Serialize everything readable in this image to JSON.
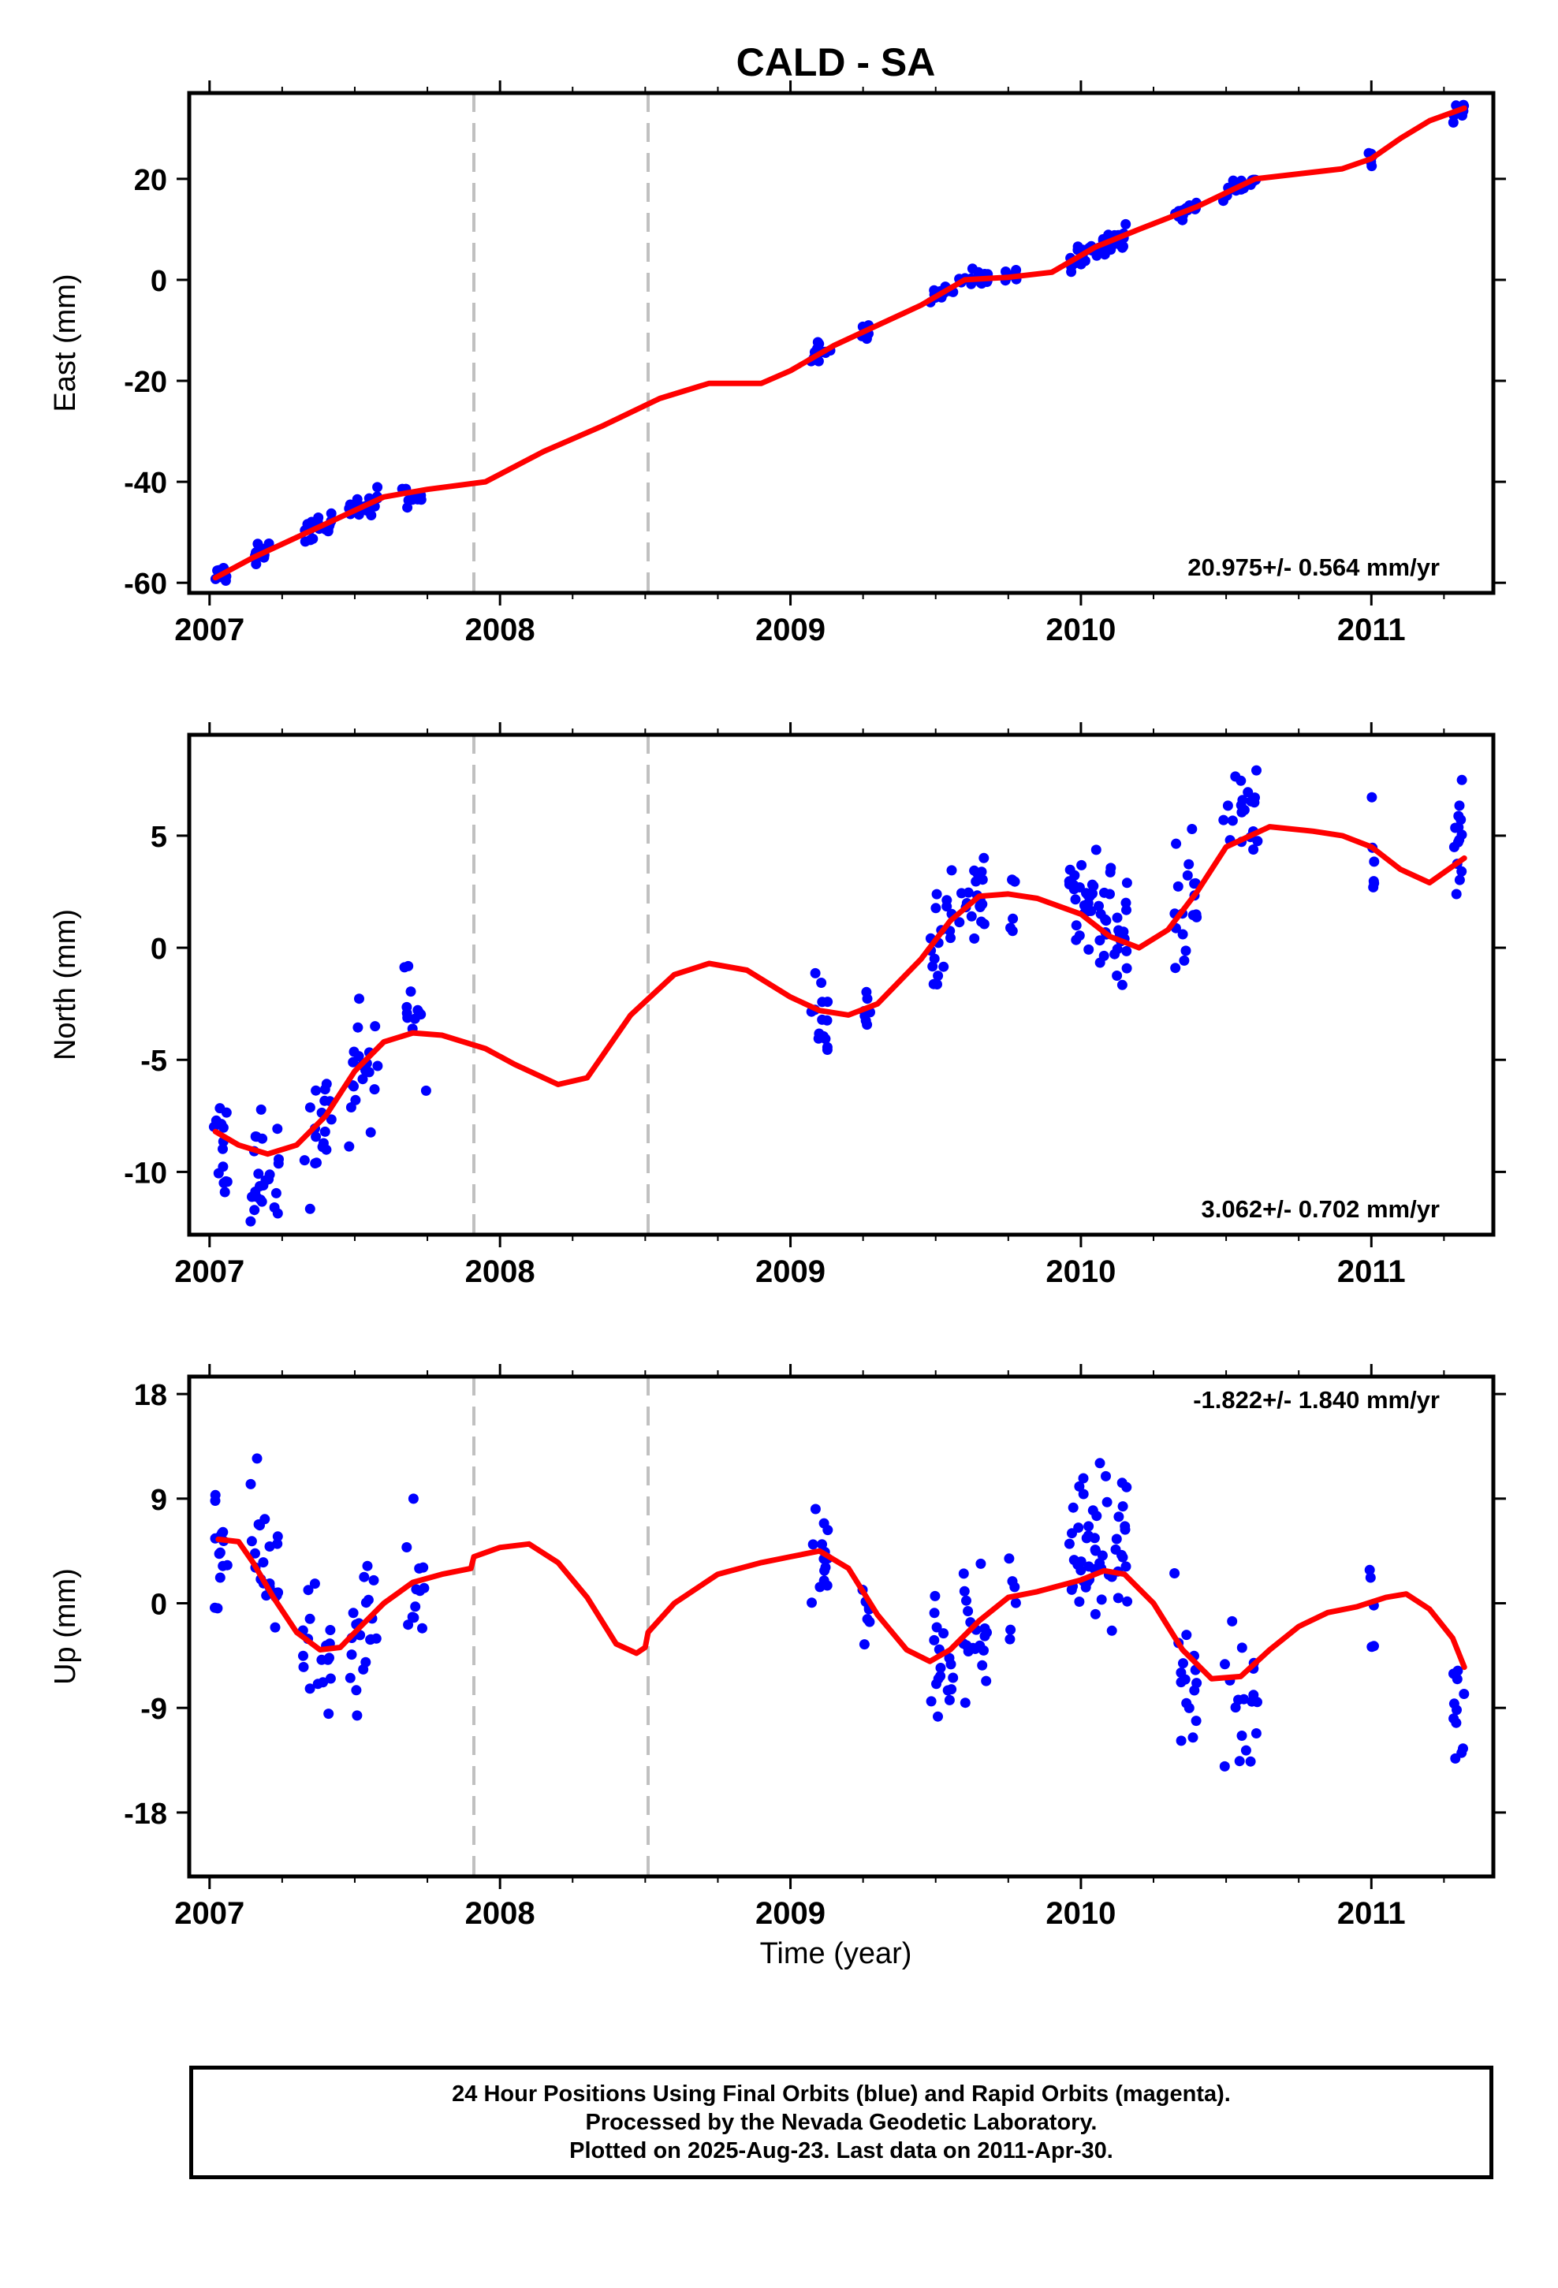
{
  "title": "CALD - SA",
  "x_axis_label": "Time (year)",
  "footer": {
    "lines": [
      "24 Hour Positions Using Final Orbits (blue) and Rapid Orbits (magenta).",
      "Processed by the Nevada Geodetic Laboratory.",
      "Plotted on 2025-Aug-23. Last data on 2011-Apr-30."
    ]
  },
  "colors": {
    "points": "#0000ff",
    "fit": "#ff0000",
    "offsets": "#c0c0c0",
    "frame": "#000000"
  },
  "chart_data": [
    {
      "type": "scatter",
      "component": "East",
      "ylabel": "East (mm)",
      "rate_label": "20.975+/- 0.564 mm/yr",
      "rate_position": "bottom-right",
      "xlim": [
        2006.93,
        2011.42
      ],
      "ylim": [
        -62,
        37
      ],
      "x_ticks": [
        "2007",
        "2008",
        "2009",
        "2010",
        "2011"
      ],
      "y_ticks": [
        "-60",
        "-40",
        "-20",
        "0",
        "20"
      ],
      "y_tick_values": [
        -60,
        -40,
        -20,
        0,
        20
      ],
      "offsets_x": [
        2007.91,
        2008.51
      ],
      "fit": {
        "x": [
          2007.02,
          2007.15,
          2007.3,
          2007.45,
          2007.6,
          2007.75,
          2007.95,
          2008.15,
          2008.35,
          2008.55,
          2008.72,
          2008.9,
          2009.0,
          2009.15,
          2009.3,
          2009.45,
          2009.6,
          2009.75,
          2009.9,
          2010.05,
          2010.2,
          2010.4,
          2010.6,
          2010.75,
          2010.9,
          2011.0,
          2011.1,
          2011.2,
          2011.32
        ],
        "y": [
          -59,
          -55,
          -51,
          -47,
          -43,
          -41.5,
          -40,
          -34,
          -29,
          -23.5,
          -20.5,
          -20.5,
          -18,
          -13,
          -9,
          -5,
          0,
          0.5,
          1.5,
          6.5,
          10,
          14.5,
          20,
          21,
          22,
          24,
          28,
          31.5,
          34
        ]
      },
      "clusters": [
        {
          "center": 2007.04,
          "half_width": 0.025,
          "count": 12,
          "fit_offset": 0,
          "spread": 2.0
        },
        {
          "center": 2007.18,
          "half_width": 0.04,
          "count": 16,
          "fit_offset": 0,
          "spread": 2.0
        },
        {
          "center": 2007.37,
          "half_width": 0.05,
          "count": 20,
          "fit_offset": 0,
          "spread": 2.2
        },
        {
          "center": 2007.53,
          "half_width": 0.05,
          "count": 22,
          "fit_offset": 0,
          "spread": 2.2
        },
        {
          "center": 2007.7,
          "half_width": 0.04,
          "count": 12,
          "fit_offset": 0,
          "spread": 2.5
        },
        {
          "center": 2009.1,
          "half_width": 0.04,
          "count": 14,
          "fit_offset": 0,
          "spread": 2.3
        },
        {
          "center": 2009.26,
          "half_width": 0.015,
          "count": 7,
          "fit_offset": 0,
          "spread": 1.6
        },
        {
          "center": 2009.52,
          "half_width": 0.04,
          "count": 14,
          "fit_offset": 0,
          "spread": 2.0
        },
        {
          "center": 2009.63,
          "half_width": 0.05,
          "count": 18,
          "fit_offset": 0,
          "spread": 1.8
        },
        {
          "center": 2009.76,
          "half_width": 0.02,
          "count": 6,
          "fit_offset": 0,
          "spread": 1.5
        },
        {
          "center": 2010.06,
          "half_width": 0.1,
          "count": 45,
          "fit_offset": 0,
          "spread": 2.0
        },
        {
          "center": 2010.36,
          "half_width": 0.04,
          "count": 15,
          "fit_offset": 0,
          "spread": 2.0
        },
        {
          "center": 2010.55,
          "half_width": 0.06,
          "count": 18,
          "fit_offset": 0,
          "spread": 1.6
        },
        {
          "center": 2011.0,
          "half_width": 0.01,
          "count": 5,
          "fit_offset": 0,
          "spread": 2.0
        },
        {
          "center": 2011.3,
          "half_width": 0.02,
          "count": 9,
          "fit_offset": 0,
          "spread": 1.8
        }
      ]
    },
    {
      "type": "scatter",
      "component": "North",
      "ylabel": "North (mm)",
      "rate_label": "3.062+/- 0.702 mm/yr",
      "rate_position": "bottom-right",
      "xlim": [
        2006.93,
        2011.42
      ],
      "ylim": [
        -12.8,
        9.5
      ],
      "x_ticks": [
        "2007",
        "2008",
        "2009",
        "2010",
        "2011"
      ],
      "y_ticks": [
        "-10",
        "-5",
        "0",
        "5"
      ],
      "y_tick_values": [
        -10,
        -5,
        0,
        5
      ],
      "offsets_x": [
        2007.91,
        2008.51
      ],
      "fit": {
        "x": [
          2007.02,
          2007.1,
          2007.2,
          2007.3,
          2007.4,
          2007.5,
          2007.6,
          2007.7,
          2007.8,
          2007.95,
          2008.05,
          2008.2,
          2008.3,
          2008.45,
          2008.6,
          2008.72,
          2008.85,
          2009.0,
          2009.1,
          2009.2,
          2009.3,
          2009.45,
          2009.55,
          2009.65,
          2009.75,
          2009.85,
          2010.0,
          2010.1,
          2010.2,
          2010.3,
          2010.4,
          2010.5,
          2010.65,
          2010.8,
          2010.9,
          2011.0,
          2011.1,
          2011.2,
          2011.32
        ],
        "y": [
          -8.2,
          -8.8,
          -9.2,
          -8.8,
          -7.5,
          -5.5,
          -4.2,
          -3.8,
          -3.9,
          -4.5,
          -5.2,
          -6.1,
          -5.8,
          -3.0,
          -1.2,
          -0.7,
          -1.0,
          -2.2,
          -2.8,
          -3.0,
          -2.5,
          -0.5,
          1.2,
          2.3,
          2.4,
          2.2,
          1.5,
          0.5,
          0,
          0.8,
          2.5,
          4.5,
          5.4,
          5.2,
          5.0,
          4.5,
          3.5,
          2.9,
          4.0
        ]
      },
      "clusters": [
        {
          "center": 2007.04,
          "half_width": 0.025,
          "count": 14,
          "fit_offset": -0.5,
          "spread": 2.8
        },
        {
          "center": 2007.19,
          "half_width": 0.05,
          "count": 24,
          "fit_offset": -0.8,
          "spread": 3.2
        },
        {
          "center": 2007.37,
          "half_width": 0.05,
          "count": 18,
          "fit_offset": -0.5,
          "spread": 3.0
        },
        {
          "center": 2007.53,
          "half_width": 0.05,
          "count": 20,
          "fit_offset": -0.3,
          "spread": 2.5
        },
        {
          "center": 2007.71,
          "half_width": 0.04,
          "count": 12,
          "fit_offset": 0.8,
          "spread": 2.6
        },
        {
          "center": 2009.1,
          "half_width": 0.03,
          "count": 14,
          "fit_offset": 0.2,
          "spread": 2.4
        },
        {
          "center": 2009.26,
          "half_width": 0.015,
          "count": 7,
          "fit_offset": -0.5,
          "spread": 2.0
        },
        {
          "center": 2009.52,
          "half_width": 0.04,
          "count": 18,
          "fit_offset": 0,
          "spread": 2.4
        },
        {
          "center": 2009.63,
          "half_width": 0.05,
          "count": 20,
          "fit_offset": 0,
          "spread": 2.2
        },
        {
          "center": 2009.76,
          "half_width": 0.02,
          "count": 6,
          "fit_offset": 0,
          "spread": 1.5
        },
        {
          "center": 2010.06,
          "half_width": 0.1,
          "count": 55,
          "fit_offset": 0.6,
          "spread": 2.5
        },
        {
          "center": 2010.36,
          "half_width": 0.04,
          "count": 18,
          "fit_offset": 0.2,
          "spread": 3.0
        },
        {
          "center": 2010.55,
          "half_width": 0.06,
          "count": 20,
          "fit_offset": 1.0,
          "spread": 2.6
        },
        {
          "center": 2011.0,
          "half_width": 0.01,
          "count": 6,
          "fit_offset": -0.5,
          "spread": 2.6
        },
        {
          "center": 2011.3,
          "half_width": 0.02,
          "count": 14,
          "fit_offset": 0.5,
          "spread": 2.6
        }
      ]
    },
    {
      "type": "scatter",
      "component": "Up",
      "ylabel": "Up (mm)",
      "rate_label": "-1.822+/- 1.840 mm/yr",
      "rate_position": "top-right",
      "xlim": [
        2006.93,
        2011.42
      ],
      "ylim": [
        -23.5,
        19.5
      ],
      "x_ticks": [
        "2007",
        "2008",
        "2009",
        "2010",
        "2011"
      ],
      "y_ticks": [
        "-18",
        "-9",
        "0",
        "9",
        "18"
      ],
      "y_tick_values": [
        -18,
        -9,
        0,
        9,
        18
      ],
      "offsets_x": [
        2007.91,
        2008.51
      ],
      "fit": {
        "x": [
          2007.03,
          2007.1,
          2007.15,
          2007.22,
          2007.3,
          2007.38,
          2007.45,
          2007.52,
          2007.6,
          2007.7,
          2007.8,
          2007.9,
          2007.91,
          2008.0,
          2008.1,
          2008.2,
          2008.3,
          2008.4,
          2008.47,
          2008.5,
          2008.51,
          2008.6,
          2008.75,
          2008.9,
          2009.0,
          2009.1,
          2009.2,
          2009.3,
          2009.4,
          2009.48,
          2009.55,
          2009.65,
          2009.75,
          2009.85,
          2010.0,
          2010.08,
          2010.15,
          2010.25,
          2010.35,
          2010.45,
          2010.55,
          2010.65,
          2010.75,
          2010.85,
          2010.95,
          2011.05,
          2011.12,
          2011.2,
          2011.28,
          2011.32
        ],
        "y": [
          5.5,
          5.3,
          3.5,
          0.5,
          -2.5,
          -4.0,
          -3.8,
          -2.0,
          0,
          1.8,
          2.5,
          3.0,
          4.0,
          4.8,
          5.1,
          3.5,
          0.5,
          -3.5,
          -4.3,
          -3.8,
          -2.5,
          0,
          2.5,
          3.5,
          4.0,
          4.5,
          3.0,
          -1.0,
          -4.0,
          -5.0,
          -4.0,
          -1.5,
          0.5,
          1.0,
          2.0,
          2.8,
          2.5,
          0,
          -4.0,
          -6.5,
          -6.3,
          -4.0,
          -2.0,
          -0.8,
          -0.3,
          0.5,
          0.8,
          -0.5,
          -3.0,
          -5.5
        ]
      },
      "clusters": [
        {
          "center": 2007.04,
          "half_width": 0.025,
          "count": 14,
          "fit_offset": -2.0,
          "spread": 5.5
        },
        {
          "center": 2007.19,
          "half_width": 0.05,
          "count": 22,
          "fit_offset": 1.5,
          "spread": 6.5
        },
        {
          "center": 2007.37,
          "half_width": 0.05,
          "count": 18,
          "fit_offset": -1.5,
          "spread": 5.5
        },
        {
          "center": 2007.53,
          "half_width": 0.05,
          "count": 20,
          "fit_offset": -0.5,
          "spread": 6.5
        },
        {
          "center": 2007.71,
          "half_width": 0.04,
          "count": 12,
          "fit_offset": -1.0,
          "spread": 6.5
        },
        {
          "center": 2009.1,
          "half_width": 0.03,
          "count": 14,
          "fit_offset": 0,
          "spread": 5.5
        },
        {
          "center": 2009.26,
          "half_width": 0.015,
          "count": 7,
          "fit_offset": -1.0,
          "spread": 3.5
        },
        {
          "center": 2009.52,
          "half_width": 0.04,
          "count": 18,
          "fit_offset": 0,
          "spread": 5.5
        },
        {
          "center": 2009.63,
          "half_width": 0.05,
          "count": 20,
          "fit_offset": 0,
          "spread": 6.5
        },
        {
          "center": 2009.76,
          "half_width": 0.02,
          "count": 6,
          "fit_offset": 0,
          "spread": 5.0
        },
        {
          "center": 2010.06,
          "half_width": 0.1,
          "count": 55,
          "fit_offset": 2.0,
          "spread": 6.0
        },
        {
          "center": 2010.36,
          "half_width": 0.04,
          "count": 16,
          "fit_offset": -2.0,
          "spread": 6.0
        },
        {
          "center": 2010.55,
          "half_width": 0.06,
          "count": 18,
          "fit_offset": -3.0,
          "spread": 7.0
        },
        {
          "center": 2011.0,
          "half_width": 0.01,
          "count": 5,
          "fit_offset": 1.5,
          "spread": 7.0
        },
        {
          "center": 2011.3,
          "half_width": 0.02,
          "count": 12,
          "fit_offset": -5.0,
          "spread": 5.0
        }
      ]
    }
  ]
}
